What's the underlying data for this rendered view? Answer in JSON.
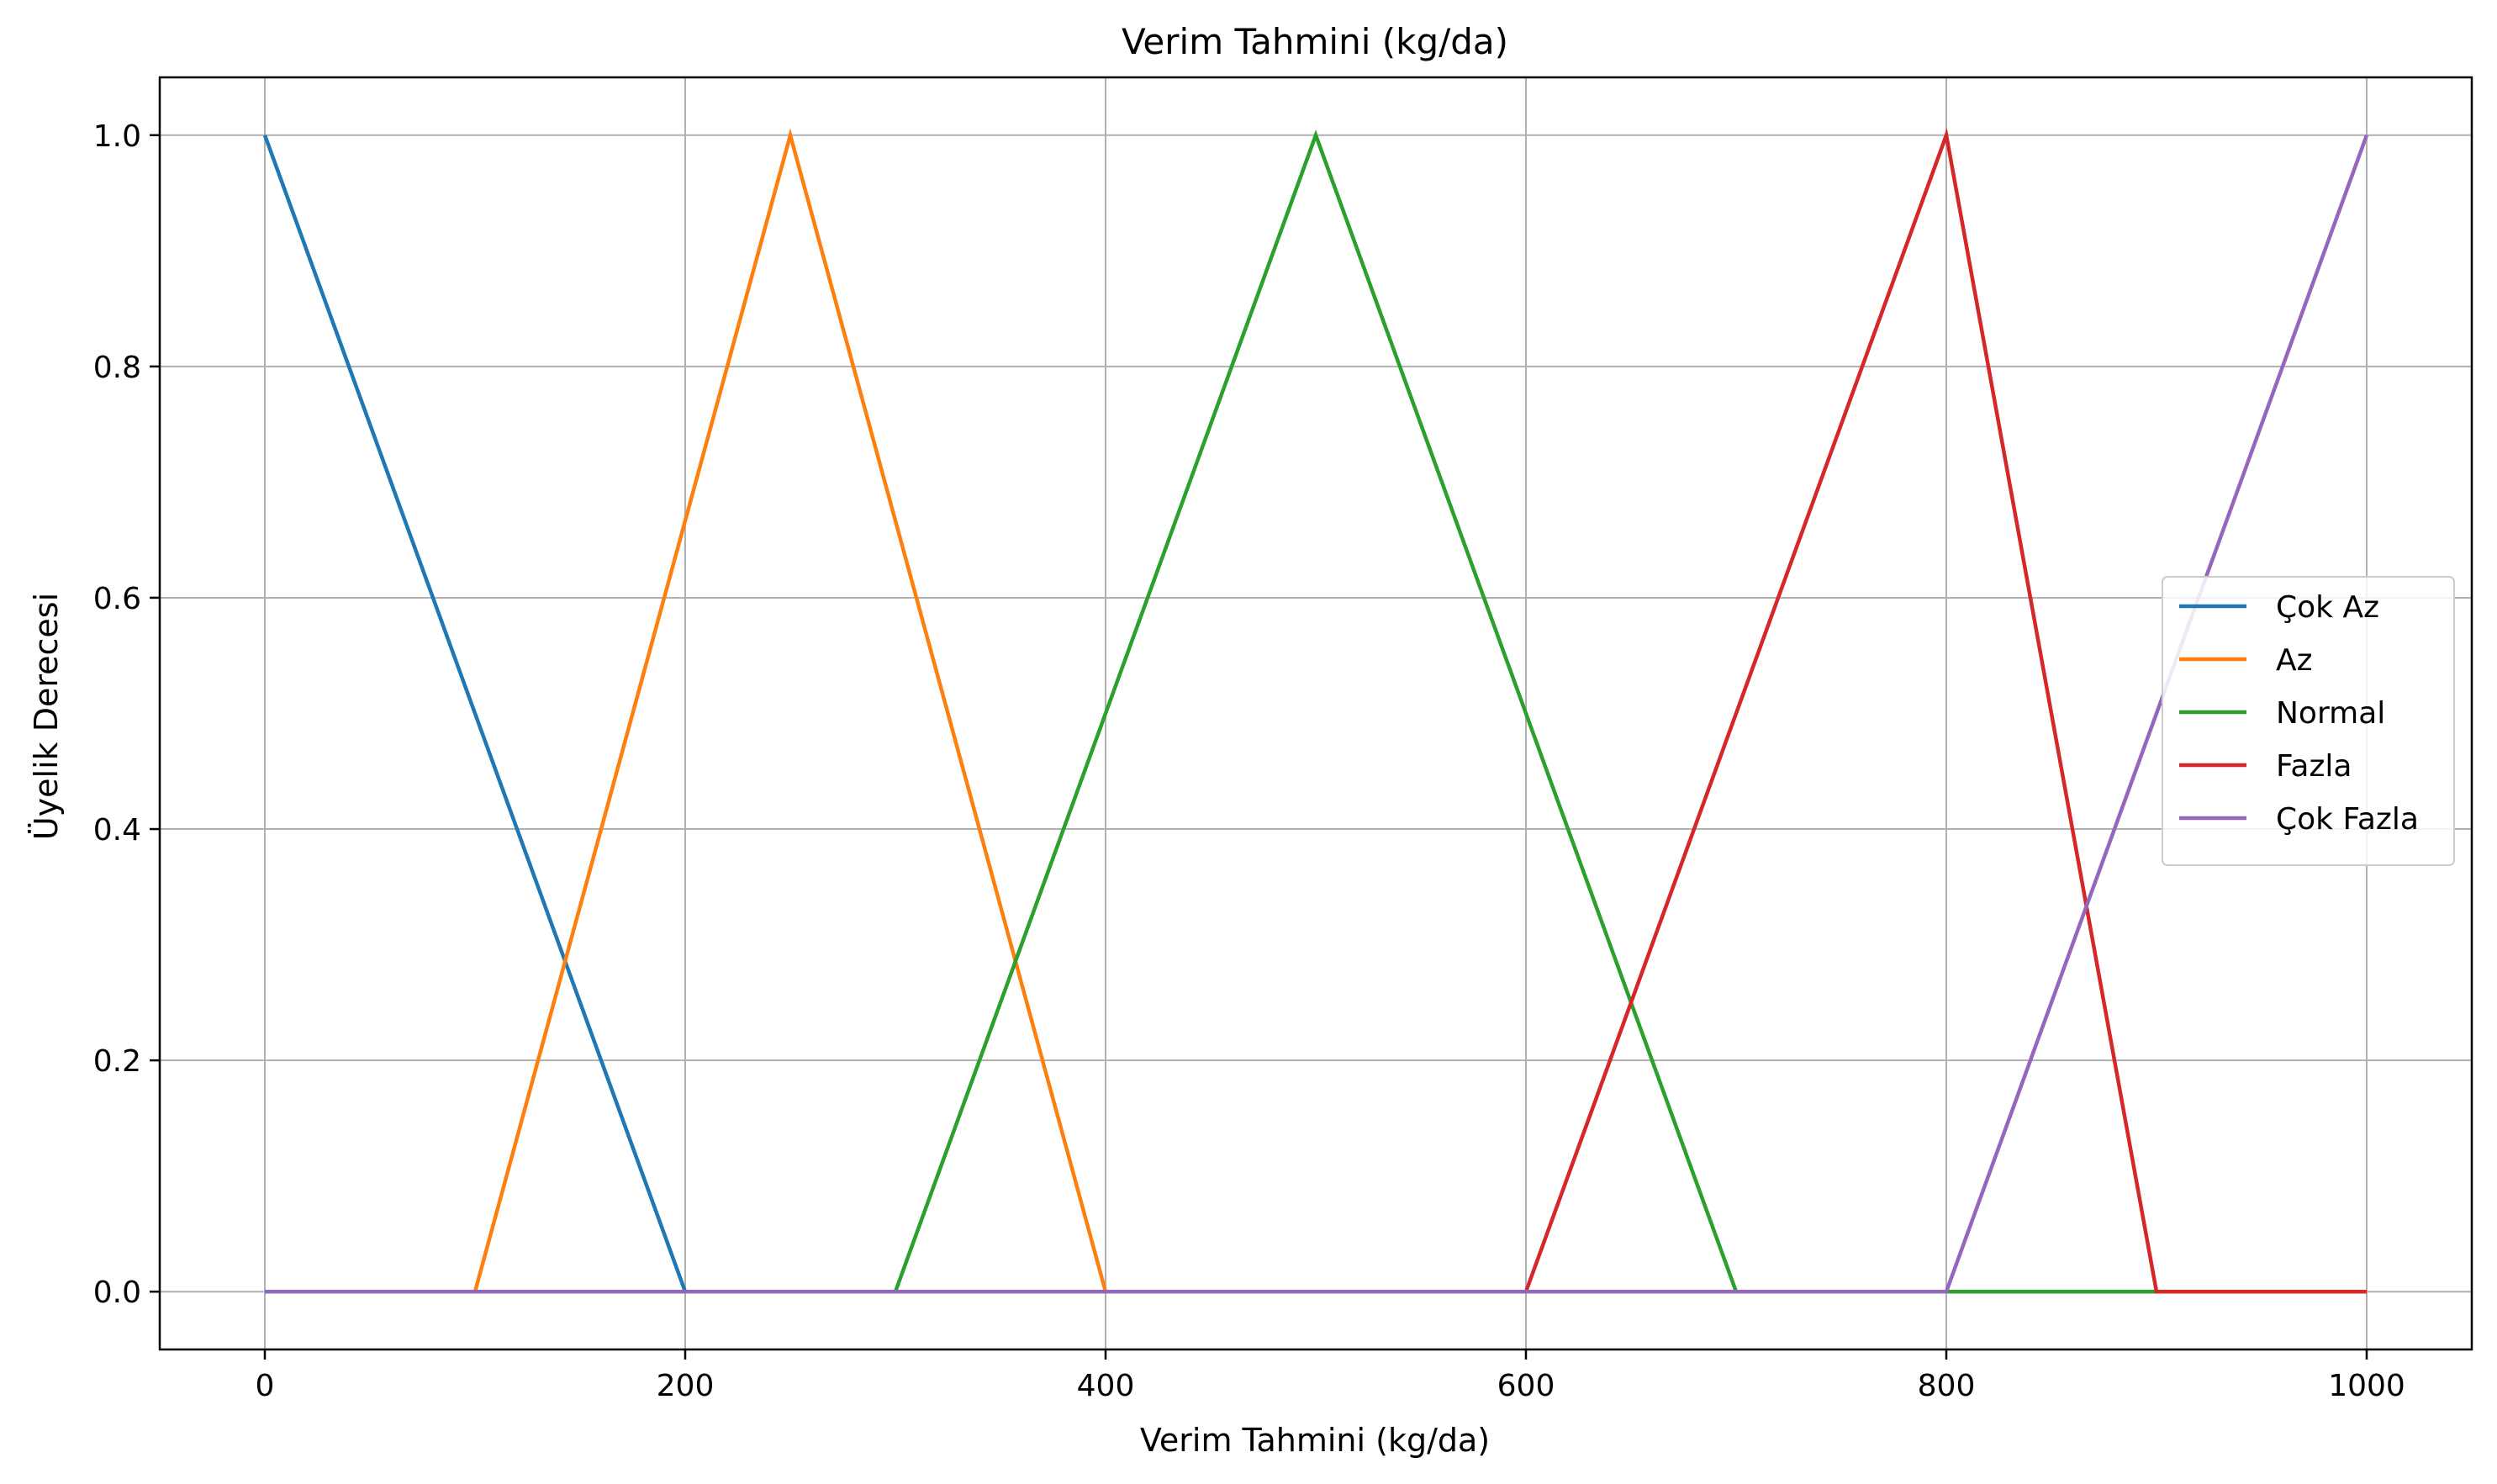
{
  "chart_data": {
    "type": "line",
    "title": "Verim Tahmini (kg/da)",
    "xlabel": "Verim Tahmini (kg/da)",
    "ylabel": "Üyelik Derecesi",
    "xlim": [
      -50,
      1050
    ],
    "ylim": [
      -0.05,
      1.05
    ],
    "xticks": [
      0,
      200,
      400,
      600,
      800,
      1000
    ],
    "xtick_labels": [
      "0",
      "200",
      "400",
      "600",
      "800",
      "1000"
    ],
    "yticks": [
      0.0,
      0.2,
      0.4,
      0.6,
      0.8,
      1.0
    ],
    "ytick_labels": [
      "0.0",
      "0.2",
      "0.4",
      "0.6",
      "0.8",
      "1.0"
    ],
    "grid": true,
    "legend_position": "center-right",
    "series": [
      {
        "name": "Çok Az",
        "color": "#1f77b4",
        "x": [
          0,
          200,
          1000
        ],
        "y": [
          1.0,
          0.0,
          0.0
        ]
      },
      {
        "name": "Az",
        "color": "#ff7f0e",
        "x": [
          0,
          100,
          250,
          400,
          1000
        ],
        "y": [
          0.0,
          0.0,
          1.0,
          0.0,
          0.0
        ]
      },
      {
        "name": "Normal",
        "color": "#2ca02c",
        "x": [
          0,
          300,
          500,
          700,
          1000
        ],
        "y": [
          0.0,
          0.0,
          1.0,
          0.0,
          0.0
        ]
      },
      {
        "name": "Fazla",
        "color": "#d62728",
        "x": [
          0,
          600,
          800,
          900,
          1000
        ],
        "y": [
          0.0,
          0.0,
          1.0,
          0.0,
          0.0
        ]
      },
      {
        "name": "Çok Fazla",
        "color": "#9467bd",
        "x": [
          0,
          800,
          1000
        ],
        "y": [
          0.0,
          0.0,
          1.0
        ]
      }
    ]
  }
}
